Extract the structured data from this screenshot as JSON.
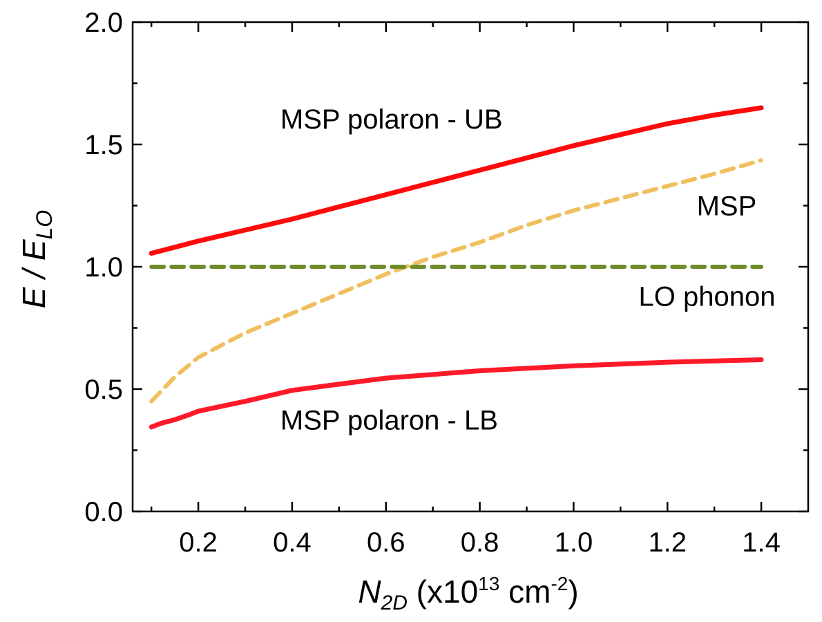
{
  "chart_data": {
    "type": "line",
    "title": "",
    "xlabel": {
      "main": "N",
      "sub": "2D",
      "unit_pre": " (x10",
      "unit_exp": "13",
      "unit_mid": " cm",
      "unit_exp2": "-2",
      "unit_post": ")"
    },
    "ylabel": {
      "main": "E / E",
      "sub": "LO"
    },
    "xlim": [
      0.06,
      1.5
    ],
    "ylim": [
      0.0,
      2.0
    ],
    "xticks": [
      0.2,
      0.4,
      0.6,
      0.8,
      1.0,
      1.2,
      1.4
    ],
    "xtick_labels": [
      "0.2",
      "0.4",
      "0.6",
      "0.8",
      "1.0",
      "1.2",
      "1.4"
    ],
    "yticks": [
      0.0,
      0.5,
      1.0,
      1.5,
      2.0
    ],
    "ytick_labels": [
      "0.0",
      "0.5",
      "1.0",
      "1.5",
      "2.0"
    ],
    "grid": false,
    "legend": "none",
    "series": [
      {
        "color": "#ff0a0a",
        "style": "solid",
        "x": [
          0.1,
          0.15,
          0.2,
          0.3,
          0.4,
          0.5,
          0.6,
          0.7,
          0.8,
          0.9,
          1.0,
          1.1,
          1.2,
          1.3,
          1.4
        ],
        "y": [
          1.055,
          1.08,
          1.105,
          1.15,
          1.195,
          1.245,
          1.295,
          1.345,
          1.395,
          1.445,
          1.495,
          1.54,
          1.585,
          1.62,
          1.65
        ]
      },
      {
        "color": "#f0c060",
        "style": "dashed",
        "x": [
          0.1,
          0.15,
          0.2,
          0.3,
          0.4,
          0.5,
          0.6,
          0.7,
          0.8,
          0.9,
          1.0,
          1.1,
          1.2,
          1.3,
          1.4
        ],
        "y": [
          0.45,
          0.55,
          0.63,
          0.73,
          0.81,
          0.89,
          0.97,
          1.04,
          1.1,
          1.17,
          1.23,
          1.28,
          1.33,
          1.38,
          1.435
        ]
      },
      {
        "color": "#6e8c2a",
        "style": "dashed",
        "x": [
          0.1,
          1.4
        ],
        "y": [
          1.0,
          1.0
        ]
      },
      {
        "color": "#ff1a2a",
        "style": "solid",
        "x": [
          0.1,
          0.12,
          0.15,
          0.18,
          0.2,
          0.25,
          0.3,
          0.4,
          0.5,
          0.6,
          0.8,
          1.0,
          1.2,
          1.4
        ],
        "y": [
          0.345,
          0.36,
          0.375,
          0.395,
          0.41,
          0.43,
          0.45,
          0.495,
          0.52,
          0.545,
          0.575,
          0.595,
          0.61,
          0.62
        ]
      }
    ],
    "annotations": [
      {
        "text": "MSP polaron - UB",
        "x": 0.375,
        "y": 1.565,
        "anchor": "start"
      },
      {
        "text": "MSP",
        "x": 1.39,
        "y": 1.21,
        "anchor": "end"
      },
      {
        "text": "LO phonon",
        "x": 1.43,
        "y": 0.84,
        "anchor": "end"
      },
      {
        "text": "MSP polaron - LB",
        "x": 0.375,
        "y": 0.335,
        "anchor": "start"
      }
    ]
  }
}
